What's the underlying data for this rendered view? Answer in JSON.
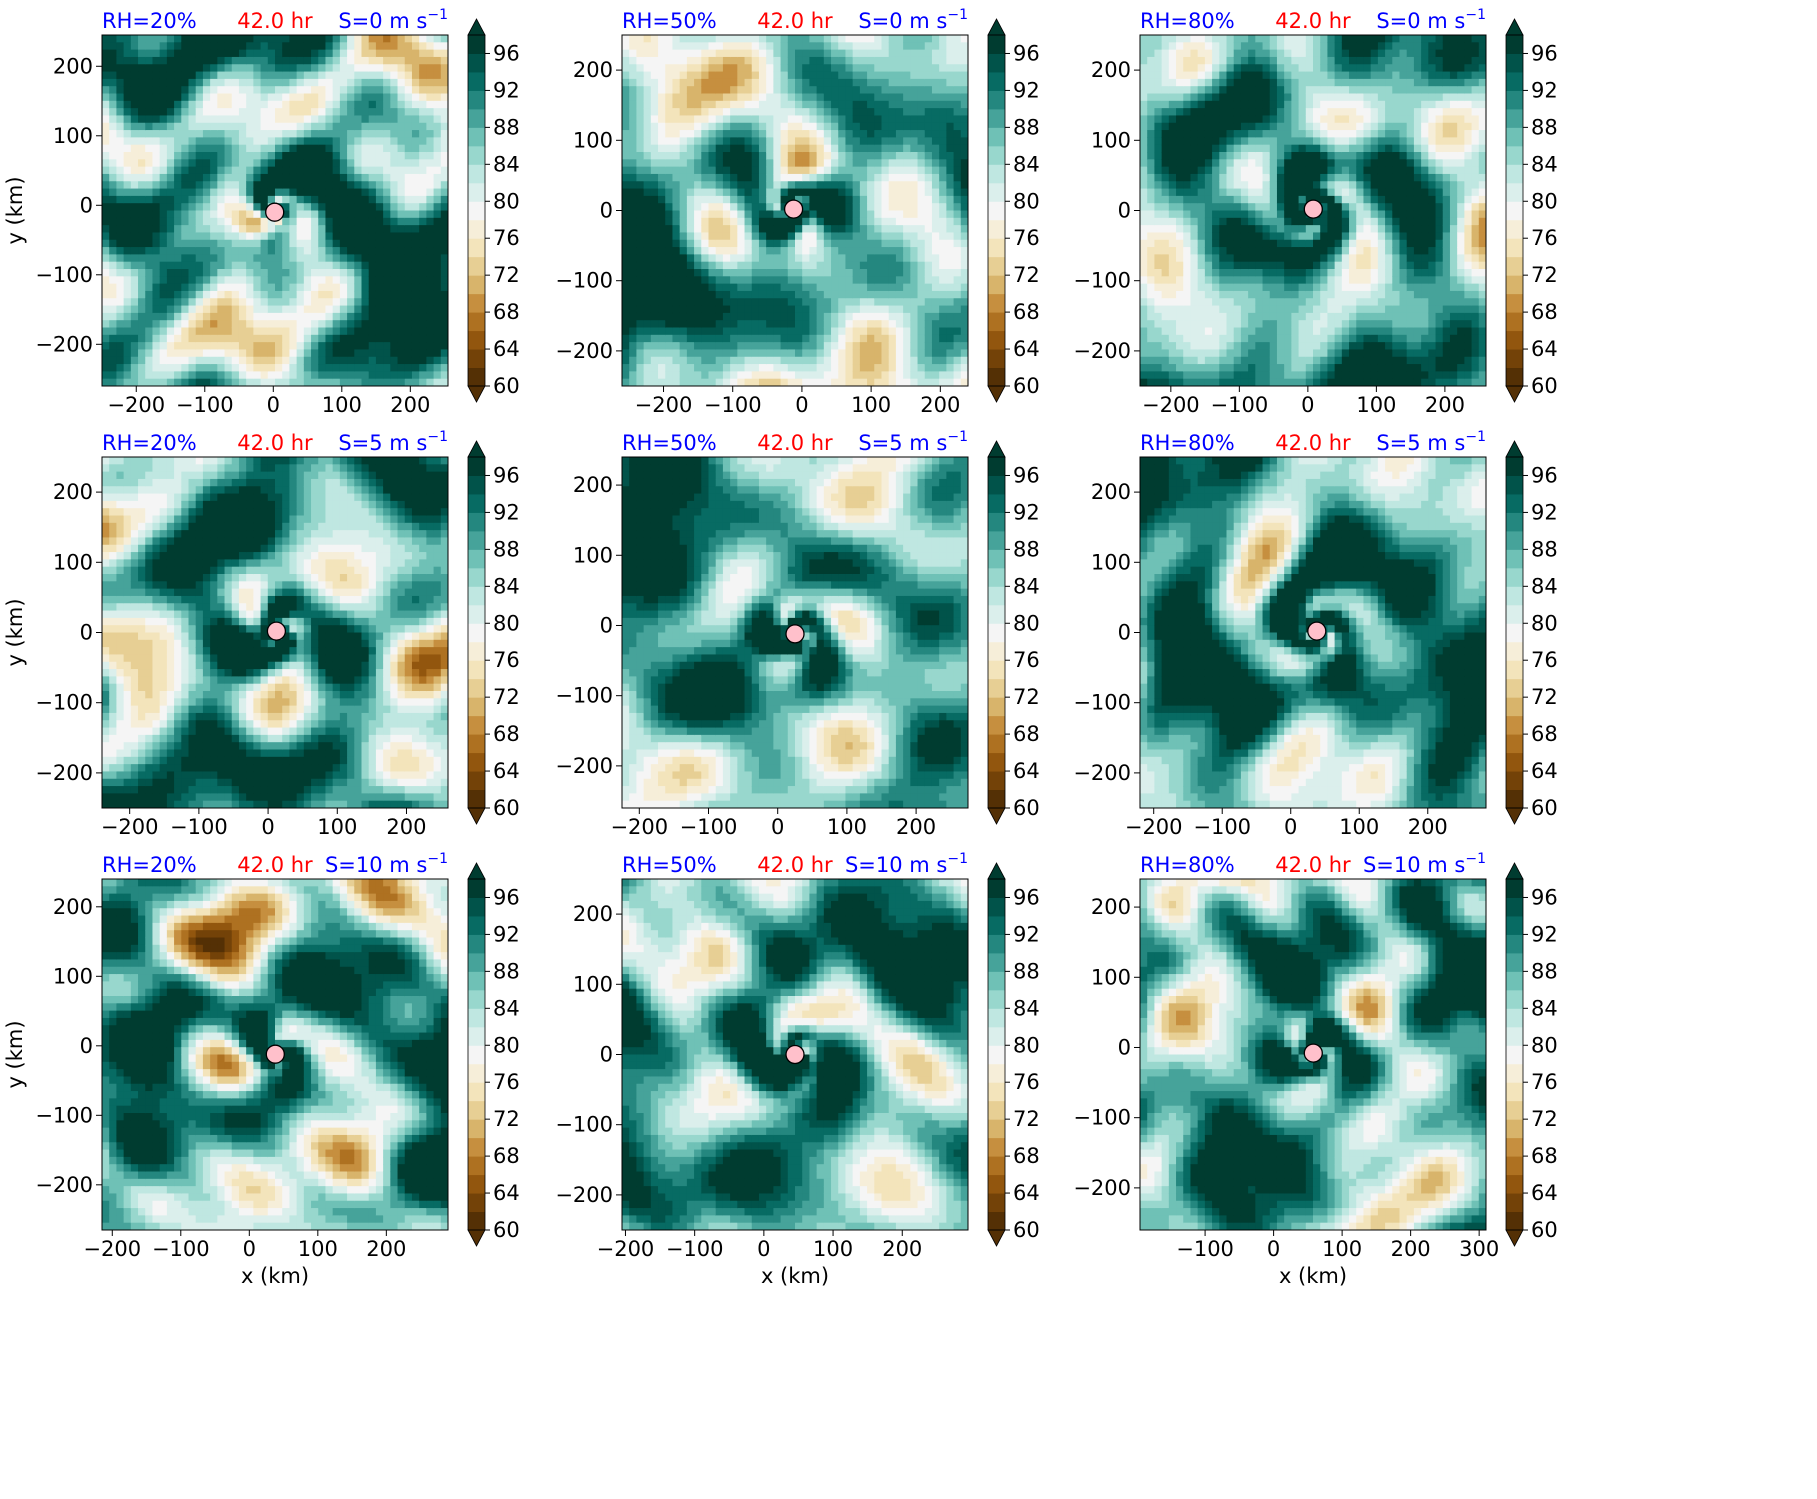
{
  "figure": {
    "x_axis_label": "x (km)",
    "y_axis_label": "y (km)",
    "shared_colorbar": {
      "type": "contourf-colorbar",
      "levels": [
        60,
        62,
        64,
        66,
        68,
        70,
        72,
        74,
        76,
        78,
        80,
        82,
        84,
        86,
        88,
        90,
        92,
        94,
        96,
        98
      ],
      "tick_labels": [
        "60",
        "64",
        "68",
        "72",
        "76",
        "80",
        "84",
        "88",
        "92",
        "96"
      ],
      "extend": "both",
      "colormap": "BrBG",
      "low_color": "#543005",
      "high_color": "#003c30"
    },
    "marker": {
      "shape": "circle",
      "fill": "#ffc0cb",
      "edge": "#000000"
    },
    "title_colors": {
      "rh": "#0000ff",
      "time": "#ff0000",
      "shear": "#0000ff"
    }
  },
  "chart_data": [
    {
      "type": "heatmap",
      "rh_label": "RH=20%",
      "time_label": "42.0 hr",
      "shear_label": "S=0 m s",
      "shear_sup": "−1",
      "xlim": [
        -250,
        255
      ],
      "ylim": [
        -260,
        245
      ],
      "xticks": [
        -200,
        -100,
        0,
        100,
        200
      ],
      "yticks": [
        -200,
        -100,
        0,
        100,
        200
      ],
      "xticklabels": [
        "−200",
        "−100",
        "0",
        "100",
        "200"
      ],
      "yticklabels": [
        "−200",
        "−100",
        "0",
        "100",
        "200"
      ],
      "center": [
        2,
        -10
      ],
      "seed": 11,
      "swirl": 0.9,
      "dry_bias": 0.0,
      "patchiness": 1.0
    },
    {
      "type": "heatmap",
      "rh_label": "RH=50%",
      "time_label": "42.0 hr",
      "shear_label": "S=0 m s",
      "shear_sup": "−1",
      "xlim": [
        -260,
        240
      ],
      "ylim": [
        -250,
        250
      ],
      "xticks": [
        -200,
        -100,
        0,
        100,
        200
      ],
      "yticks": [
        -200,
        -100,
        0,
        100,
        200
      ],
      "xticklabels": [
        "−200",
        "−100",
        "0",
        "100",
        "200"
      ],
      "yticklabels": [
        "−200",
        "−100",
        "0",
        "100",
        "200"
      ],
      "center": [
        -12,
        2
      ],
      "seed": 23,
      "swirl": 1.1,
      "dry_bias": 0.0,
      "patchiness": 0.9
    },
    {
      "type": "heatmap",
      "rh_label": "RH=80%",
      "time_label": "42.0 hr",
      "shear_label": "S=0 m s",
      "shear_sup": "−1",
      "xlim": [
        -245,
        260
      ],
      "ylim": [
        -250,
        250
      ],
      "xticks": [
        -200,
        -100,
        0,
        100,
        200
      ],
      "yticks": [
        -200,
        -100,
        0,
        100,
        200
      ],
      "xticklabels": [
        "−200",
        "−100",
        "0",
        "100",
        "200"
      ],
      "yticklabels": [
        "−200",
        "−100",
        "0",
        "100",
        "200"
      ],
      "center": [
        8,
        2
      ],
      "seed": 37,
      "swirl": 1.3,
      "dry_bias": 0.0,
      "patchiness": 0.6
    },
    {
      "type": "heatmap",
      "rh_label": "RH=20%",
      "time_label": "42.0 hr",
      "shear_label": "S=5 m s",
      "shear_sup": "−1",
      "xlim": [
        -240,
        260
      ],
      "ylim": [
        -250,
        250
      ],
      "xticks": [
        -200,
        -100,
        0,
        100,
        200
      ],
      "yticks": [
        -200,
        -100,
        0,
        100,
        200
      ],
      "xticklabels": [
        "−200",
        "−100",
        "0",
        "100",
        "200"
      ],
      "yticklabels": [
        "−200",
        "−100",
        "0",
        "100",
        "200"
      ],
      "center": [
        12,
        2
      ],
      "seed": 41,
      "swirl": 1.0,
      "dry_bias": 0.05,
      "patchiness": 0.9
    },
    {
      "type": "heatmap",
      "rh_label": "RH=50%",
      "time_label": "42.0 hr",
      "shear_label": "S=5 m s",
      "shear_sup": "−1",
      "xlim": [
        -225,
        275
      ],
      "ylim": [
        -260,
        240
      ],
      "xticks": [
        -200,
        -100,
        0,
        100,
        200
      ],
      "yticks": [
        -200,
        -100,
        0,
        100,
        200
      ],
      "xticklabels": [
        "−200",
        "−100",
        "0",
        "100",
        "200"
      ],
      "yticklabels": [
        "−200",
        "−100",
        "0",
        "100",
        "200"
      ],
      "center": [
        25,
        -12
      ],
      "seed": 53,
      "swirl": 1.2,
      "dry_bias": 0.02,
      "patchiness": 0.8
    },
    {
      "type": "heatmap",
      "rh_label": "RH=80%",
      "time_label": "42.0 hr",
      "shear_label": "S=5 m s",
      "shear_sup": "−1",
      "xlim": [
        -220,
        285
      ],
      "ylim": [
        -250,
        250
      ],
      "xticks": [
        -200,
        -100,
        0,
        100,
        200
      ],
      "yticks": [
        -200,
        -100,
        0,
        100,
        200
      ],
      "xticklabels": [
        "−200",
        "−100",
        "0",
        "100",
        "200"
      ],
      "yticklabels": [
        "−200",
        "−100",
        "0",
        "100",
        "200"
      ],
      "center": [
        38,
        2
      ],
      "seed": 67,
      "swirl": 1.2,
      "dry_bias": -0.03,
      "patchiness": 0.7
    },
    {
      "type": "heatmap",
      "rh_label": "RH=20%",
      "time_label": "42.0 hr",
      "shear_label": "S=10 m s",
      "shear_sup": "−1",
      "xlim": [
        -215,
        290
      ],
      "ylim": [
        -265,
        240
      ],
      "xticks": [
        -200,
        -100,
        0,
        100,
        200
      ],
      "yticks": [
        -200,
        -100,
        0,
        100,
        200
      ],
      "xticklabels": [
        "−200",
        "−100",
        "0",
        "100",
        "200"
      ],
      "yticklabels": [
        "−200",
        "−100",
        "0",
        "100",
        "200"
      ],
      "center": [
        38,
        -12
      ],
      "seed": 79,
      "swirl": 0.8,
      "dry_bias": 0.12,
      "patchiness": 1.0
    },
    {
      "type": "heatmap",
      "rh_label": "RH=50%",
      "time_label": "42.0 hr",
      "shear_label": "S=10 m s",
      "shear_sup": "−1",
      "xlim": [
        -205,
        295
      ],
      "ylim": [
        -250,
        250
      ],
      "xticks": [
        -200,
        -100,
        0,
        100,
        200
      ],
      "yticks": [
        -200,
        -100,
        0,
        100,
        200
      ],
      "xticklabels": [
        "−200",
        "−100",
        "0",
        "100",
        "200"
      ],
      "yticklabels": [
        "−200",
        "−100",
        "0",
        "100",
        "200"
      ],
      "center": [
        45,
        0
      ],
      "seed": 97,
      "swirl": 1.1,
      "dry_bias": 0.0,
      "patchiness": 0.8
    },
    {
      "type": "heatmap",
      "rh_label": "RH=80%",
      "time_label": "42.0 hr",
      "shear_label": "S=10 m s",
      "shear_sup": "−1",
      "xlim": [
        -195,
        310
      ],
      "ylim": [
        -260,
        240
      ],
      "xticks": [
        -100,
        0,
        100,
        200,
        300
      ],
      "yticks": [
        -200,
        -100,
        0,
        100,
        200
      ],
      "xticklabels": [
        "−100",
        "0",
        "100",
        "200",
        "300"
      ],
      "yticklabels": [
        "−200",
        "−100",
        "0",
        "100",
        "200"
      ],
      "center": [
        58,
        -8
      ],
      "seed": 113,
      "swirl": 1.1,
      "dry_bias": 0.03,
      "patchiness": 0.8
    }
  ]
}
